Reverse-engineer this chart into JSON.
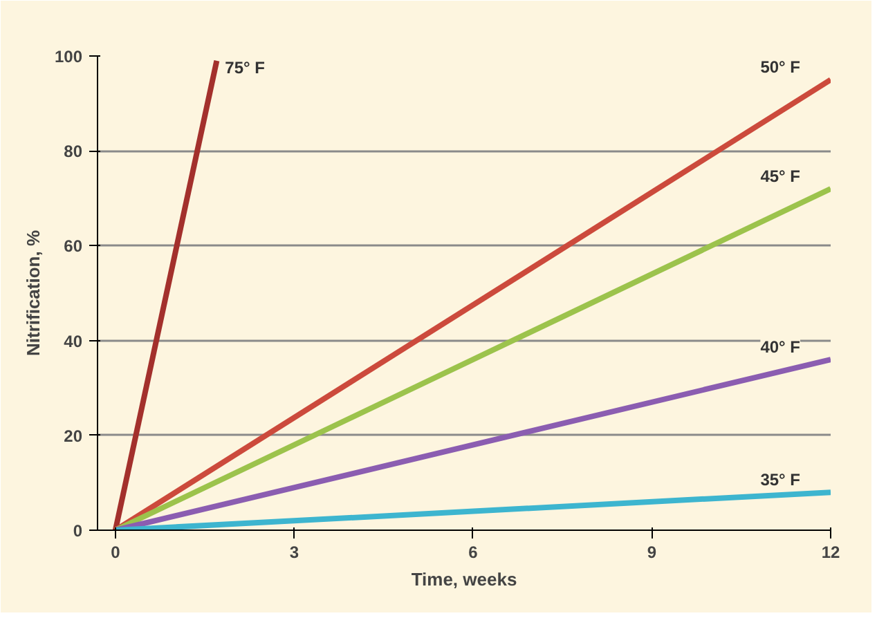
{
  "chart_data": {
    "type": "line",
    "xlabel": "Time, weeks",
    "ylabel": "Nitrification, %",
    "xlim": [
      -0.3,
      12
    ],
    "ylim": [
      0,
      100
    ],
    "xticks": [
      0,
      3,
      6,
      9,
      12
    ],
    "yticks": [
      0,
      20,
      40,
      60,
      80,
      100
    ],
    "grid": "y",
    "marker": "none",
    "line_style": "solid",
    "series": [
      {
        "name": "75° F",
        "color": "#a3302c",
        "x": [
          0,
          1.7
        ],
        "values": [
          0,
          99
        ]
      },
      {
        "name": "50° F",
        "color": "#cc4a3c",
        "x": [
          0,
          12
        ],
        "values": [
          0,
          95
        ]
      },
      {
        "name": "45° F",
        "color": "#9cc34c",
        "x": [
          0,
          12
        ],
        "values": [
          0,
          72
        ]
      },
      {
        "name": "40° F",
        "color": "#8b5db1",
        "x": [
          0,
          12
        ],
        "values": [
          0,
          36
        ]
      },
      {
        "name": "35° F",
        "color": "#3db5cf",
        "x": [
          0,
          12
        ],
        "values": [
          0,
          8
        ]
      }
    ]
  }
}
